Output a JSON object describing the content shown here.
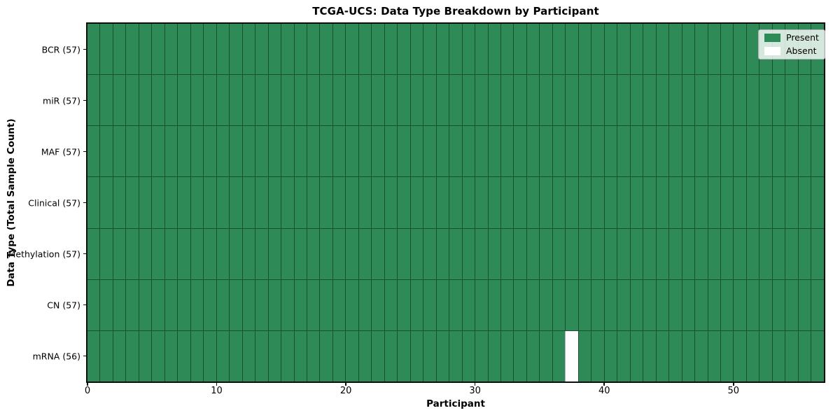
{
  "figure": {
    "background": "#ffffff"
  },
  "chart_data": {
    "type": "heatmap",
    "title": "TCGA-UCS: Data Type Breakdown by Participant",
    "xlabel": "Participant",
    "ylabel": "Data Type (Total Sample Count)",
    "x_ticks": [
      0,
      10,
      20,
      30,
      40,
      50
    ],
    "x_range": [
      0,
      57
    ],
    "n_participants": 57,
    "grid": true,
    "legend_position": "upper-right",
    "rows": [
      {
        "name": "BCR",
        "label": "BCR (57)",
        "present_count": 57,
        "absent_participants": []
      },
      {
        "name": "miR",
        "label": "miR (57)",
        "present_count": 57,
        "absent_participants": []
      },
      {
        "name": "MAF",
        "label": "MAF (57)",
        "present_count": 57,
        "absent_participants": []
      },
      {
        "name": "Clinical",
        "label": "Clinical (57)",
        "present_count": 57,
        "absent_participants": []
      },
      {
        "name": "Methylation",
        "label": "Methylation (57)",
        "present_count": 57,
        "absent_participants": []
      },
      {
        "name": "CN",
        "label": "CN (57)",
        "present_count": 57,
        "absent_participants": []
      },
      {
        "name": "mRNA",
        "label": "mRNA (56)",
        "present_count": 56,
        "absent_participants": [
          37
        ]
      }
    ],
    "legend": [
      {
        "name": "present",
        "label": "Present",
        "color": "#2e8b57"
      },
      {
        "name": "absent",
        "label": "Absent",
        "color": "#ffffff"
      }
    ],
    "colors": {
      "present": "#2e8b57",
      "absent": "#ffffff",
      "gridline": "rgba(0,0,0,0.42)",
      "spine": "#0d0d0d"
    }
  }
}
